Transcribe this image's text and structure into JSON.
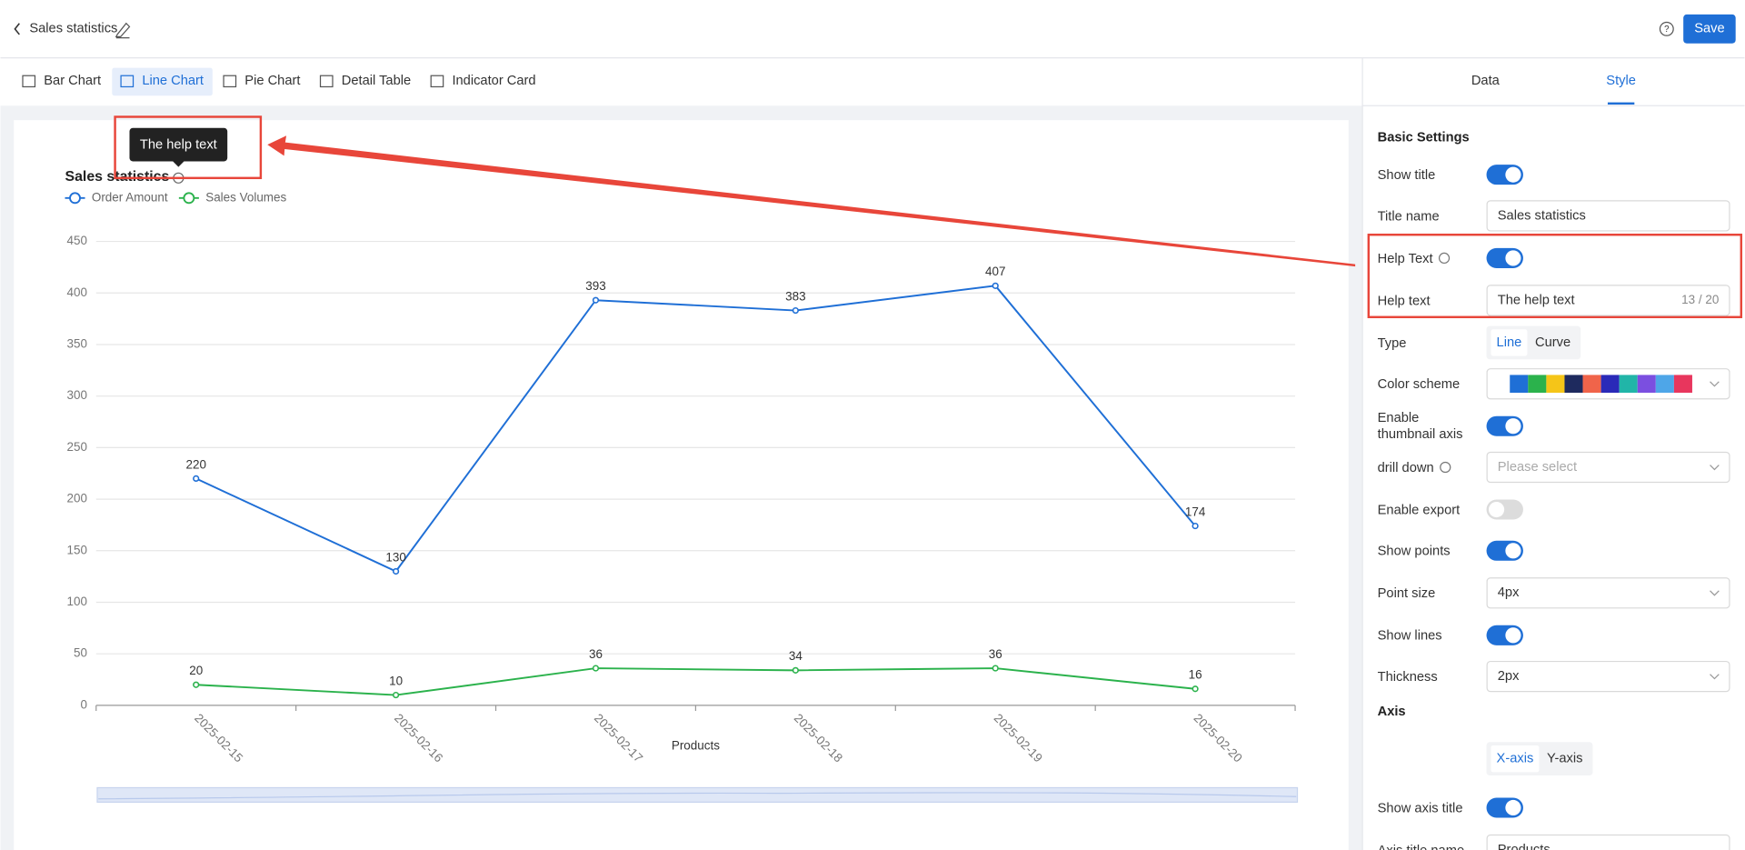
{
  "header": {
    "title": "Sales statistics",
    "save": "Save"
  },
  "chart_tabs": {
    "items": [
      "Bar Chart",
      "Line Chart",
      "Pie Chart",
      "Detail Table",
      "Indicator Card"
    ],
    "active": 1
  },
  "panel_tabs": {
    "items": [
      "Data",
      "Style"
    ],
    "active": 1
  },
  "tooltip": "The help text",
  "chart_data": {
    "type": "line",
    "title": "Sales statistics",
    "x_label": "Products",
    "categories": [
      "2025-02-15",
      "2025-02-16",
      "2025-02-17",
      "2025-02-18",
      "2025-02-19",
      "2025-02-20"
    ],
    "series": [
      {
        "name": "Order Amount",
        "color": "#1f6fd6",
        "values": [
          220,
          130,
          393,
          383,
          407,
          174
        ]
      },
      {
        "name": "Sales Volumes",
        "color": "#2bb24c",
        "values": [
          20,
          10,
          36,
          34,
          36,
          16
        ]
      }
    ],
    "ylim": [
      0,
      450
    ],
    "yticks": [
      0,
      50,
      100,
      150,
      200,
      250,
      300,
      350,
      400,
      450
    ],
    "grid": true,
    "legend": "top-left"
  },
  "settings": {
    "section": "Basic Settings",
    "rows": [
      {
        "label": "Show title",
        "toggle": true
      },
      {
        "label": "Title name",
        "input": "Sales statistics"
      },
      {
        "label": "Help Text",
        "help": true,
        "toggle": true
      },
      {
        "label": "Help text",
        "input": "The help text",
        "counter": "13 / 20"
      },
      {
        "label": "Type",
        "options": [
          "Line",
          "Curve"
        ],
        "active": 0
      },
      {
        "label": "Color scheme",
        "colors": [
          "#1f6fd6",
          "#2bb24c",
          "#f5c518",
          "#1e2a5e",
          "#f0644a",
          "#2a2ab8",
          "#21b5a8",
          "#7b4fe0",
          "#4ea6e8",
          "#e8365d"
        ]
      },
      {
        "label": "Enable thumbnail axis",
        "toggle": true
      },
      {
        "label": "drill down",
        "help": true,
        "placeholder": "Please select"
      },
      {
        "label": "Enable export",
        "toggle": false
      },
      {
        "label": "Show points",
        "toggle": true
      },
      {
        "label": "Point size",
        "select": "4px"
      },
      {
        "label": "Show lines",
        "toggle": true
      },
      {
        "label": "Thickness",
        "select": "2px"
      }
    ],
    "axis_section": "Axis",
    "axis_rows": [
      {
        "options": [
          "X-axis",
          "Y-axis"
        ],
        "active": 0
      },
      {
        "label": "Show axis title",
        "toggle": true
      },
      {
        "label": "Axis title name",
        "input": "Products"
      }
    ]
  }
}
